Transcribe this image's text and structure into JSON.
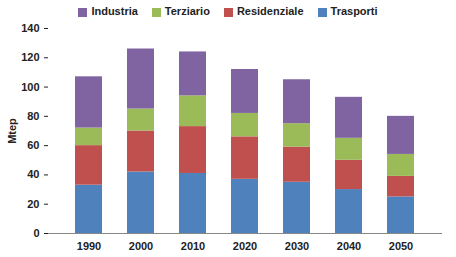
{
  "chart_data": {
    "type": "bar",
    "stacked": true,
    "legend": "top",
    "grid": false,
    "y_label": "Mtep",
    "categories": [
      "1990",
      "2000",
      "2010",
      "2020",
      "2030",
      "2040",
      "2050"
    ],
    "series": [
      {
        "name": "Trasporti",
        "color": "#4f81bd",
        "values": [
          33,
          42,
          41,
          37,
          35,
          30,
          25
        ]
      },
      {
        "name": "Residenziale",
        "color": "#c0504d",
        "values": [
          27,
          28,
          32,
          29,
          24,
          20,
          14
        ]
      },
      {
        "name": "Terziario",
        "color": "#9bbb59",
        "values": [
          12,
          15,
          21,
          16,
          16,
          15,
          15
        ]
      },
      {
        "name": "Industria",
        "color": "#8064a2",
        "values": [
          35,
          41,
          30,
          30,
          30,
          28,
          26
        ]
      }
    ],
    "ylim": [
      0,
      140
    ],
    "yticks": [
      0,
      20,
      40,
      60,
      80,
      100,
      120,
      140
    ]
  }
}
